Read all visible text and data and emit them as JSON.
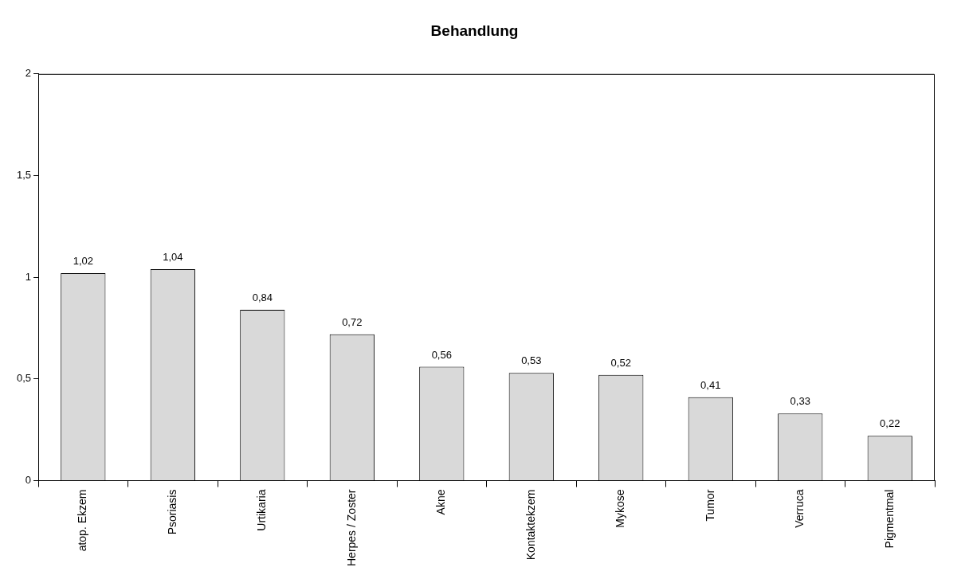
{
  "chart_data": {
    "type": "bar",
    "title": "Behandlung",
    "categories": [
      "atop. Ekzem",
      "Psoriasis",
      "Urtikaria",
      "Herpes / Zoster",
      "Akne",
      "Kontaktekzem",
      "Mykose",
      "Tumor",
      "Verruca",
      "Pigmentmal"
    ],
    "values": [
      1.02,
      1.04,
      0.84,
      0.72,
      0.56,
      0.53,
      0.52,
      0.41,
      0.33,
      0.22
    ],
    "value_labels": [
      "1,02",
      "1,04",
      "0,84",
      "0,72",
      "0,56",
      "0,53",
      "0,52",
      "0,41",
      "0,33",
      "0,22"
    ],
    "color": "#d9d9d9",
    "ylim": [
      0,
      2
    ],
    "yticks": [
      0,
      {
        "value": 0.5,
        "label": "0,5"
      },
      1,
      {
        "value": 1.5,
        "label": "1,5"
      },
      2
    ],
    "grid": false,
    "legend": false
  }
}
